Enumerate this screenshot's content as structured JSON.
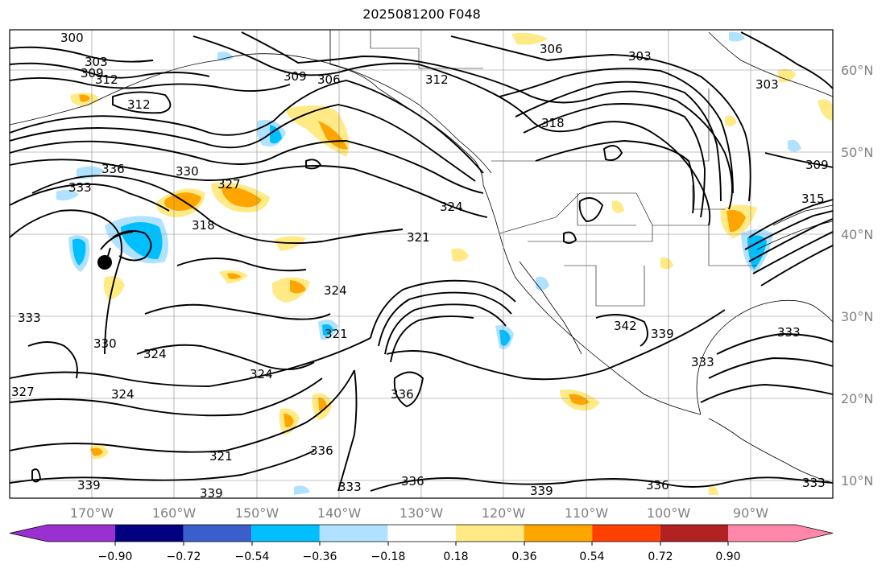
{
  "title": "2025081200 F048",
  "map": {
    "lon_range_deg": [
      -180,
      -80
    ],
    "lat_range_deg": [
      7.5,
      65
    ],
    "lon_ticks": [
      "170°W",
      "160°W",
      "150°W",
      "140°W",
      "130°W",
      "120°W",
      "110°W",
      "100°W",
      "90°W"
    ],
    "lat_ticks": [
      "60°N",
      "50°N",
      "40°N",
      "30°N",
      "20°N",
      "10°N"
    ],
    "grid": true
  },
  "contour_labels": [
    "300",
    "303",
    "309",
    "312",
    "312",
    "309",
    "306",
    "306",
    "303",
    "312",
    "318",
    "303",
    "330",
    "333",
    "336",
    "327",
    "318",
    "324",
    "321",
    "324",
    "321",
    "324",
    "324",
    "342",
    "339",
    "333",
    "333",
    "330",
    "333",
    "327",
    "324",
    "321",
    "336",
    "336",
    "333",
    "336",
    "339",
    "339",
    "336",
    "339",
    "309",
    "315",
    "333"
  ],
  "colorbar": {
    "ticks": [
      "−0.90",
      "−0.72",
      "−0.54",
      "−0.36",
      "−0.18",
      "0.18",
      "0.36",
      "0.54",
      "0.72",
      "0.90"
    ],
    "colors": [
      "#9b30d0",
      "#000080",
      "#3a5fcd",
      "#00bfff",
      "#b0e2ff",
      "#ffffff",
      "#ffea85",
      "#ffa500",
      "#ff4000",
      "#b22222",
      "#ff88aa"
    ]
  }
}
